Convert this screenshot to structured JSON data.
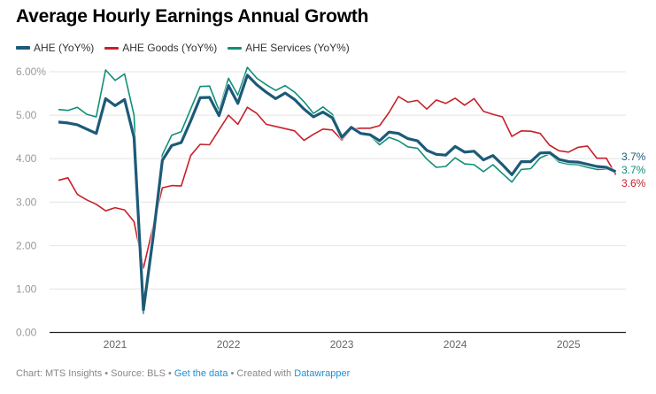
{
  "title": "Average Hourly Earnings Annual Growth",
  "legend": [
    {
      "label": "AHE (YoY%)",
      "color": "#1d5a78"
    },
    {
      "label": "AHE Goods (YoY%)",
      "color": "#c8202a"
    },
    {
      "label": "AHE Services (YoY%)",
      "color": "#0f8f78"
    }
  ],
  "footer": {
    "chart": "Chart: MTS Insights",
    "source": "Source: BLS",
    "get_data": "Get the data",
    "created": "Created with",
    "datawrapper": "Datawrapper",
    "sep": " • "
  },
  "chart_data": {
    "type": "line",
    "title": "Average Hourly Earnings Annual Growth",
    "ylim": [
      0,
      6
    ],
    "yticks": [
      "0.00",
      "1.00",
      "2.00",
      "3.00",
      "4.00",
      "5.00",
      "6.00%"
    ],
    "xticks": [
      "2021",
      "2022",
      "2023",
      "2024",
      "2025"
    ],
    "grid": true,
    "legend_position": "top-left",
    "x": [
      "2020-07",
      "2020-08",
      "2020-09",
      "2020-10",
      "2020-11",
      "2020-12",
      "2021-01",
      "2021-02",
      "2021-03",
      "2021-04",
      "2021-05",
      "2021-06",
      "2021-07",
      "2021-08",
      "2021-09",
      "2021-10",
      "2021-11",
      "2021-12",
      "2022-01",
      "2022-02",
      "2022-03",
      "2022-04",
      "2022-05",
      "2022-06",
      "2022-07",
      "2022-08",
      "2022-09",
      "2022-10",
      "2022-11",
      "2022-12",
      "2023-01",
      "2023-02",
      "2023-03",
      "2023-04",
      "2023-05",
      "2023-06",
      "2023-07",
      "2023-08",
      "2023-09",
      "2023-10",
      "2023-11",
      "2023-12",
      "2024-01",
      "2024-02",
      "2024-03",
      "2024-04",
      "2024-05",
      "2024-06",
      "2024-07",
      "2024-08",
      "2024-09",
      "2024-10",
      "2024-11",
      "2024-12",
      "2025-01",
      "2025-02",
      "2025-03",
      "2025-04",
      "2025-05",
      "2025-06"
    ],
    "series": [
      {
        "name": "AHE (YoY%)",
        "color": "#1d5a78",
        "end_label": "3.7%",
        "values": [
          4.84,
          4.82,
          4.78,
          4.68,
          4.58,
          5.38,
          5.22,
          5.36,
          4.49,
          0.52,
          2.15,
          3.96,
          4.3,
          4.37,
          4.87,
          5.4,
          5.41,
          4.99,
          5.68,
          5.27,
          5.92,
          5.7,
          5.53,
          5.38,
          5.51,
          5.36,
          5.14,
          4.96,
          5.07,
          4.94,
          4.49,
          4.72,
          4.58,
          4.55,
          4.41,
          4.61,
          4.58,
          4.46,
          4.41,
          4.19,
          4.1,
          4.08,
          4.28,
          4.15,
          4.17,
          3.97,
          4.07,
          3.86,
          3.63,
          3.93,
          3.93,
          4.13,
          4.14,
          3.98,
          3.93,
          3.92,
          3.87,
          3.82,
          3.8,
          3.7
        ]
      },
      {
        "name": "AHE Goods (YoY%)",
        "color": "#c8202a",
        "end_label": "3.6%",
        "values": [
          3.5,
          3.56,
          3.18,
          3.05,
          2.95,
          2.8,
          2.87,
          2.82,
          2.55,
          1.48,
          2.42,
          3.33,
          3.38,
          3.37,
          4.07,
          4.33,
          4.32,
          4.66,
          5.0,
          4.79,
          5.18,
          5.04,
          4.79,
          4.74,
          4.69,
          4.64,
          4.42,
          4.56,
          4.68,
          4.66,
          4.43,
          4.68,
          4.7,
          4.7,
          4.76,
          5.06,
          5.43,
          5.3,
          5.34,
          5.14,
          5.35,
          5.27,
          5.39,
          5.23,
          5.38,
          5.09,
          5.02,
          4.96,
          4.51,
          4.64,
          4.63,
          4.58,
          4.31,
          4.18,
          4.15,
          4.26,
          4.29,
          4.01,
          4.01,
          3.63
        ]
      },
      {
        "name": "AHE Services (YoY%)",
        "color": "#0f8f78",
        "end_label": "3.7%",
        "values": [
          5.13,
          5.11,
          5.18,
          5.02,
          4.96,
          6.04,
          5.8,
          5.95,
          5.0,
          0.44,
          2.15,
          4.09,
          4.54,
          4.62,
          5.14,
          5.66,
          5.67,
          5.11,
          5.85,
          5.46,
          6.1,
          5.85,
          5.7,
          5.57,
          5.68,
          5.53,
          5.31,
          5.04,
          5.19,
          5.02,
          4.53,
          4.7,
          4.58,
          4.53,
          4.32,
          4.49,
          4.41,
          4.27,
          4.24,
          3.99,
          3.8,
          3.82,
          4.02,
          3.88,
          3.86,
          3.7,
          3.86,
          3.66,
          3.46,
          3.75,
          3.77,
          4.02,
          4.11,
          3.92,
          3.87,
          3.86,
          3.8,
          3.75,
          3.76,
          3.7
        ]
      }
    ]
  }
}
